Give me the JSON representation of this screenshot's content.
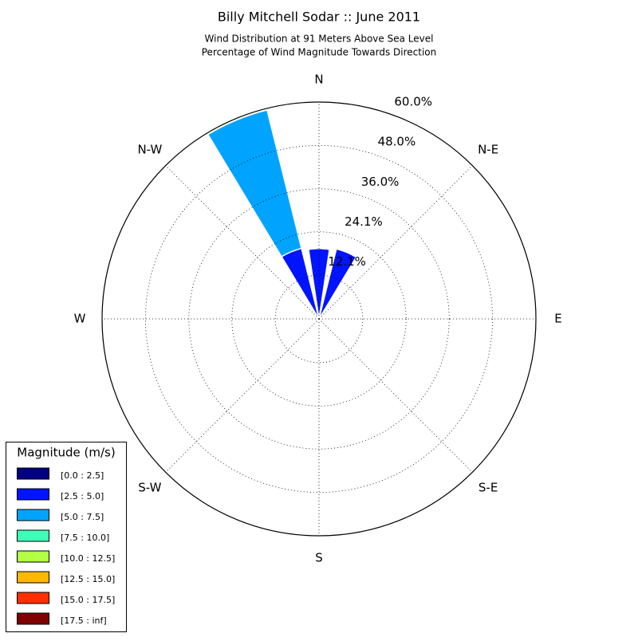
{
  "chart_data": {
    "type": "windrose",
    "title": "Billy Mitchell Sodar :: June 2011",
    "subtitle": [
      "Wind Distribution at 91 Meters Above Sea Level",
      "Percentage of Wind Magnitude Towards Direction"
    ],
    "categories": [
      "N",
      null,
      "N-E",
      null,
      "E",
      null,
      "S-E",
      null,
      "S",
      null,
      "S-W",
      null,
      "W",
      null,
      "N-W",
      null
    ],
    "ylim": [
      0,
      60
    ],
    "yticks": [
      {
        "value": 12.1,
        "label": "12.1%"
      },
      {
        "value": 24.1,
        "label": "24.1%"
      },
      {
        "value": 36.0,
        "label": "36.0%"
      },
      {
        "value": 48.0,
        "label": "48.0%"
      },
      {
        "value": 60.0,
        "label": "60.0%"
      }
    ],
    "grid": true,
    "legend_title": "Magnitude (m/s)",
    "legend_position": "lower left",
    "series": [
      {
        "name": "[0.0 : 2.5]",
        "color": "#000080",
        "values": [
          0,
          0,
          0,
          0,
          0,
          0,
          0,
          0,
          0,
          0,
          0,
          0,
          0,
          0,
          0,
          0
        ]
      },
      {
        "name": "[2.5 : 5.0]",
        "color": "#0014ff",
        "values": [
          19.5,
          20.0,
          0,
          0,
          0,
          0,
          0,
          0,
          0,
          0,
          0,
          0,
          0,
          0,
          0,
          20.1
        ]
      },
      {
        "name": "[5.0 : 7.5]",
        "color": "#00a4ff",
        "values": [
          0,
          0,
          0,
          0,
          0,
          0,
          0,
          0,
          0,
          0,
          0,
          0,
          0,
          0,
          0,
          39.5
        ]
      },
      {
        "name": "[7.5 : 10.0]",
        "color": "#3effb8",
        "values": [
          0,
          0,
          0,
          0,
          0,
          0,
          0,
          0,
          0,
          0,
          0,
          0,
          0,
          0,
          0,
          0
        ]
      },
      {
        "name": "[10.0 : 12.5]",
        "color": "#b2ff45",
        "values": [
          0,
          0,
          0,
          0,
          0,
          0,
          0,
          0,
          0,
          0,
          0,
          0,
          0,
          0,
          0,
          0
        ]
      },
      {
        "name": "[12.5 : 15.0]",
        "color": "#ffb700",
        "values": [
          0,
          0,
          0,
          0,
          0,
          0,
          0,
          0,
          0,
          0,
          0,
          0,
          0,
          0,
          0,
          0
        ]
      },
      {
        "name": "[15.0 : 17.5]",
        "color": "#ff3000",
        "values": [
          0,
          0,
          0,
          0,
          0,
          0,
          0,
          0,
          0,
          0,
          0,
          0,
          0,
          0,
          0,
          0
        ]
      },
      {
        "name": "[17.5 : inf]",
        "color": "#800000",
        "values": [
          0,
          0,
          0,
          0,
          0,
          0,
          0,
          0,
          0,
          0,
          0,
          0,
          0,
          0,
          0,
          0
        ]
      }
    ]
  }
}
